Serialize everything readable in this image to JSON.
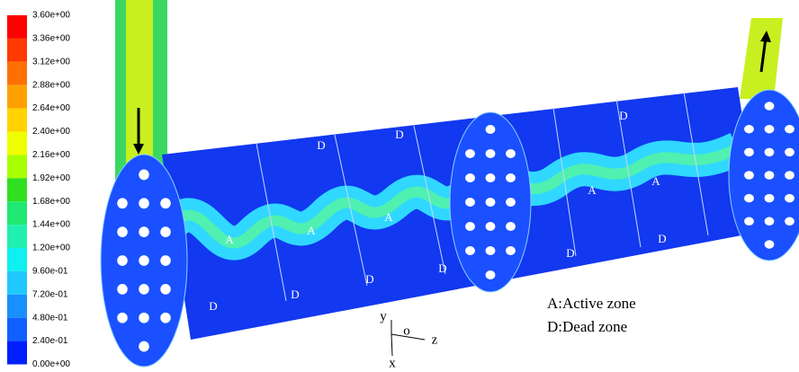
{
  "colorbar": {
    "labels": [
      "3.60e+00",
      "3.36e+00",
      "3.12e+00",
      "2.88e+00",
      "2.64e+00",
      "2.40e+00",
      "2.16e+00",
      "1.92e+00",
      "1.68e+00",
      "1.44e+00",
      "1.20e+00",
      "9.60e-01",
      "7.20e-01",
      "4.80e-01",
      "2.40e-01",
      "0.00e+00"
    ],
    "colors": [
      "#ff0000",
      "#ff3a00",
      "#ff7000",
      "#ffa000",
      "#ffd200",
      "#f0ff00",
      "#a8ff00",
      "#30e020",
      "#20e870",
      "#20f0b0",
      "#10f0f0",
      "#20c8ff",
      "#1890ff",
      "#1060ff",
      "#0020ff"
    ]
  },
  "zone_markers": [
    "A",
    "A",
    "A",
    "A",
    "A",
    "D",
    "D",
    "D",
    "D",
    "D",
    "D",
    "D",
    "D",
    "D"
  ],
  "legend": [
    "A:Active zone",
    "D:Dead zone"
  ],
  "axes": {
    "y": "y",
    "origin": "o",
    "z": "z",
    "x": "x"
  }
}
